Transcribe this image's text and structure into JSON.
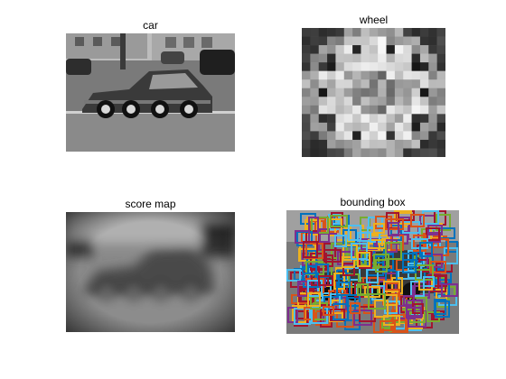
{
  "panels": {
    "car": {
      "title": "car"
    },
    "wheel": {
      "title": "wheel"
    },
    "score": {
      "title": "score map"
    },
    "bbox": {
      "title": "bounding box"
    }
  },
  "colors": {
    "box_palette": [
      "#0072BD",
      "#D95319",
      "#EDB120",
      "#7E2F8E",
      "#77AC30",
      "#4DBEEE",
      "#A2142F"
    ]
  }
}
